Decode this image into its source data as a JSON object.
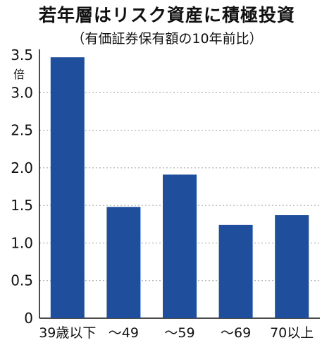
{
  "chart_data": {
    "type": "bar",
    "title": "若年層はリスク資産に積極投資",
    "subtitle": "（有価証券保有額の10年前比）",
    "ylabel": "倍",
    "categories": [
      "39歳以下",
      "～49",
      "～59",
      "～69",
      "70以上"
    ],
    "values": [
      3.47,
      1.48,
      1.91,
      1.24,
      1.37
    ],
    "ylim": [
      0,
      3.5
    ],
    "yticks": [
      "0",
      "0.5",
      "1.0",
      "1.5",
      "2.0",
      "2.5",
      "3.0",
      "3.5"
    ],
    "grid": true,
    "bar_color": "#1f4f9c",
    "grid_color": "#a0a0a0"
  }
}
